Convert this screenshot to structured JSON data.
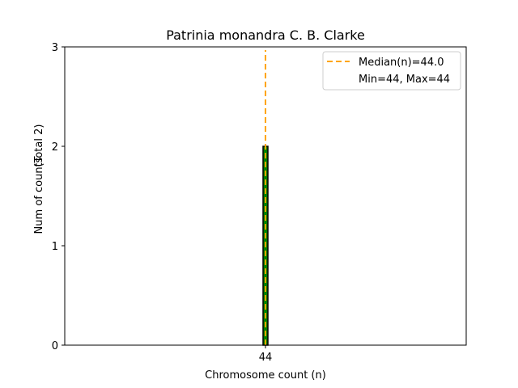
{
  "chart_data": {
    "type": "bar",
    "title": "Patrinia monandra C. B. Clarke",
    "xlabel": "Chromosome count (n)",
    "ylabel": "Num of counts",
    "ylabel_total": "(Total 2)",
    "categories": [
      "44"
    ],
    "values": [
      2
    ],
    "ylim": [
      0,
      3
    ],
    "yticks": [
      "0",
      "1",
      "2",
      "3"
    ],
    "xticks": [
      "44"
    ],
    "median": 44.0,
    "grid": false,
    "legend_position": "top-right",
    "legend": {
      "median_label": "Median(n)=44.0",
      "minmax_label": "Min=44, Max=44"
    },
    "colors": {
      "bar_fill": "#008000",
      "bar_edge": "#000000",
      "median_line": "#FFA500"
    }
  }
}
